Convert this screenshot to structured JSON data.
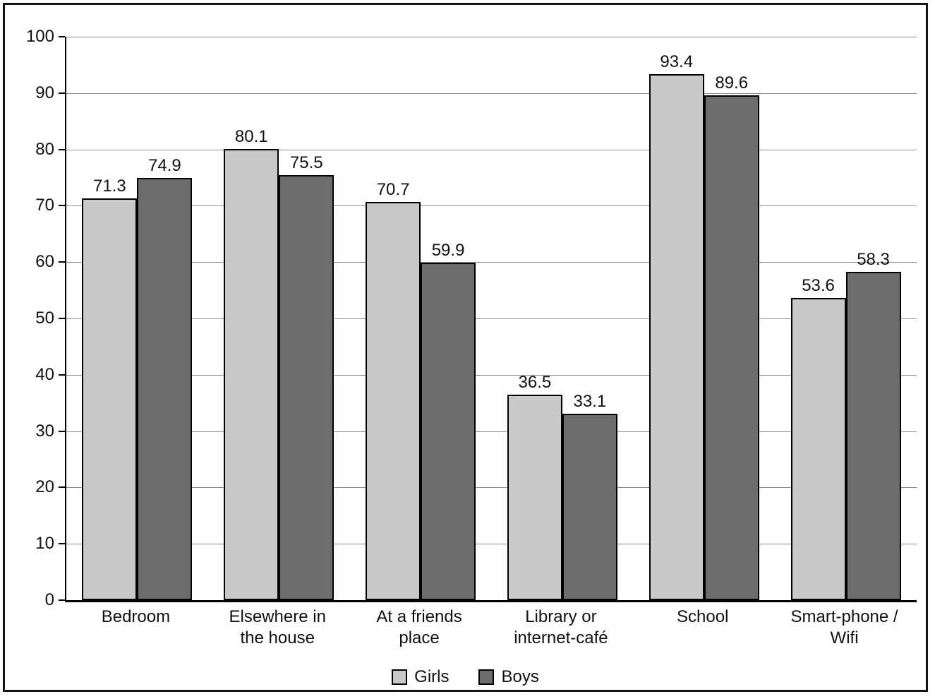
{
  "chart_data": {
    "type": "bar",
    "title": "",
    "xlabel": "",
    "ylabel": "",
    "categories": [
      "Bedroom",
      "Elsewhere in the house",
      "At a friends place",
      "Library or internet-café",
      "School",
      "Smart-phone / Wifi"
    ],
    "series": [
      {
        "name": "Girls",
        "color": "#c9c9c9",
        "values": [
          71.3,
          80.1,
          70.7,
          36.5,
          93.4,
          53.6
        ]
      },
      {
        "name": "Boys",
        "color": "#6d6d6d",
        "values": [
          74.9,
          75.5,
          59.9,
          33.1,
          89.6,
          58.3
        ]
      }
    ],
    "ylim": [
      0,
      100
    ],
    "ytick_step": 10,
    "ytick_labels": [
      "0",
      "10",
      "20",
      "30",
      "40",
      "50",
      "60",
      "70",
      "80",
      "90",
      "100"
    ],
    "grid": "horizontal",
    "legend_position": "bottom"
  }
}
